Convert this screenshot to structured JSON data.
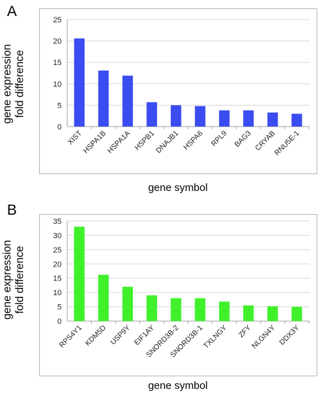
{
  "panels": [
    {
      "letter": "A",
      "ylabel_line1": "gene expression",
      "ylabel_line2": "fold difference",
      "xlabel": "gene symbol"
    },
    {
      "letter": "B",
      "ylabel_line1": "gene expression",
      "ylabel_line2": "fold difference",
      "xlabel": "gene symbol"
    }
  ],
  "chart_data": [
    {
      "type": "bar",
      "categories": [
        "XIST",
        "HSPA1B",
        "HSPA1A",
        "HSPB1",
        "DNAJB1",
        "HSPA6",
        "RPL9",
        "BAG3",
        "CRYAB",
        "RNU5E-1"
      ],
      "values": [
        20.6,
        13.1,
        11.9,
        5.7,
        5.0,
        4.8,
        3.8,
        3.8,
        3.3,
        3.0
      ],
      "xlabel": "gene symbol",
      "ylabel": "gene expression fold difference",
      "ylim": [
        0,
        25
      ],
      "yticks": [
        0,
        5,
        10,
        15,
        20,
        25
      ],
      "grid": true,
      "bar_color": "#3b4df0"
    },
    {
      "type": "bar",
      "categories": [
        "RPS4Y1",
        "KDM5D",
        "USP9Y",
        "EIF1AY",
        "SNORD3B-2",
        "SNORD3B-1",
        "TXLNGY",
        "ZFY",
        "NLGN4Y",
        "DDX3Y"
      ],
      "values": [
        33.0,
        16.2,
        12.0,
        9.0,
        8.0,
        8.0,
        6.8,
        5.5,
        5.2,
        5.0
      ],
      "xlabel": "gene symbol",
      "ylabel": "gene expression fold difference",
      "ylim": [
        0,
        35
      ],
      "yticks": [
        0,
        5,
        10,
        15,
        20,
        25,
        30,
        35
      ],
      "grid": true,
      "bar_color": "#3ff02a"
    }
  ]
}
